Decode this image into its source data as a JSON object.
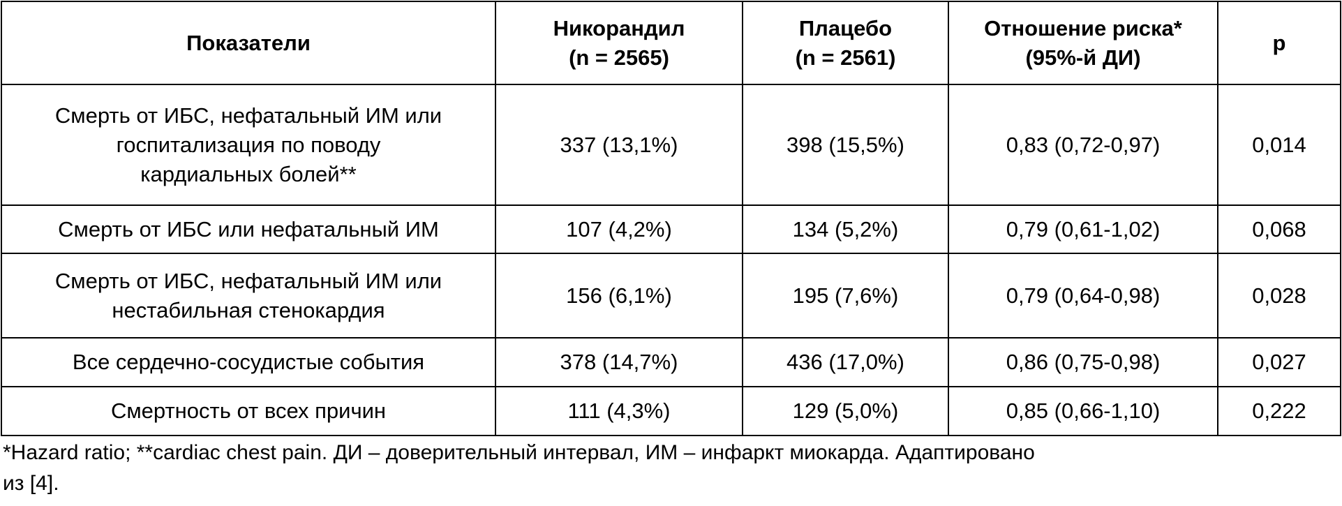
{
  "table": {
    "header": [
      [
        "Показатели"
      ],
      [
        "Никорандил",
        "(n = 2565)"
      ],
      [
        "Плацебо",
        "(n = 2561)"
      ],
      [
        "Отношение риска*",
        "(95%-й ДИ)"
      ],
      [
        "p"
      ]
    ],
    "rows": [
      [
        [
          "Смерть от ИБС, нефатальный ИМ или",
          "госпитализация по поводу",
          "кардиальных болей**"
        ],
        "337 (13,1%)",
        "398 (15,5%)",
        "0,83 (0,72-0,97)",
        "0,014"
      ],
      [
        [
          "Смерть от ИБС или нефатальный ИМ"
        ],
        "107 (4,2%)",
        "134 (5,2%)",
        "0,79 (0,61-1,02)",
        "0,068"
      ],
      [
        [
          "Смерть от ИБС, нефатальный ИМ или",
          "нестабильная стенокардия"
        ],
        "156 (6,1%)",
        "195 (7,6%)",
        "0,79 (0,64-0,98)",
        "0,028"
      ],
      [
        [
          "Все сердечно-сосудистые события"
        ],
        "378 (14,7%)",
        "436 (17,0%)",
        "0,86 (0,75-0,98)",
        "0,027"
      ],
      [
        [
          "Смертность от всех причин"
        ],
        "111 (4,3%)",
        "129 (5,0%)",
        "0,85 (0,66-1,10)",
        "0,222"
      ]
    ]
  },
  "footnote": [
    "*Hazard ratio; **cardiac chest pain. ДИ – доверительный интервал, ИМ – инфаркт миокарда.  Адаптировано",
    "из [4]."
  ]
}
